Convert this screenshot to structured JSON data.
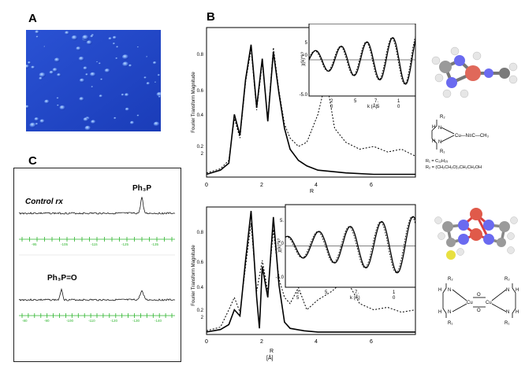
{
  "panels": {
    "a_label": "A",
    "b_label": "B",
    "c_label": "C"
  },
  "colors": {
    "afm_base": "#1f45c8",
    "afm_light": "#7fa6ff",
    "nmr_axis": "#2db52d",
    "spectrum": "#1a1a1a",
    "carbon": "#8a8a8a",
    "nitrogen": "#5a5af0",
    "copper": "#e05a4a",
    "sulfur": "#e8e040"
  },
  "panel_b": {
    "top": {
      "ylabel": "Fourier Transform Magnitude",
      "yticks": [
        "0.8",
        "0.6",
        "0.4",
        "0.2"
      ],
      "yticks_extra": "2",
      "xticks": [
        "0",
        "2",
        "4",
        "6"
      ],
      "xlabel": "R",
      "inset": {
        "ylabel": "χ(k)*k³",
        "yticks": [
          "5",
          "0",
          "-5.0"
        ],
        "xticks": [
          "2",
          "5",
          "7.",
          "1"
        ],
        "xticks2": [
          "0",
          "5",
          "0"
        ],
        "xlabel": "k (Å)"
      },
      "chemistry": {
        "sub_r2": "R₂",
        "label_nh": "N",
        "label_h": "H",
        "label_cu": "Cu—N≡C—CH₃",
        "sub_r1": "R₁",
        "r1_def": "R₁ = C₁₂H₂₅",
        "r2_def": "R₂ = (CH₂CH₂O)₃CH₂CH₂OH"
      }
    },
    "bottom": {
      "ylabel": "Fourier Transform Magnitude",
      "yticks": [
        "0.8",
        "0.6",
        "0.4",
        "0.2"
      ],
      "yticks_extra": "2",
      "xticks": [
        "0",
        "2",
        "4",
        "6"
      ],
      "xlabel": "R",
      "xlabel_unit": "[Å]",
      "inset": {
        "ylabel": "χ(k)*k³",
        "yticks": [
          "5.",
          "0",
          "-5.0"
        ],
        "xticks": [
          "2.",
          "5",
          "7.",
          "1"
        ],
        "xticks2": [
          "5",
          "",
          "0"
        ],
        "xlabel": "k (Å)"
      },
      "chemistry": {
        "r2_left": "R₂",
        "r2_right": "R₂",
        "r1_left": "R₁",
        "r1_right": "R₁",
        "h": "H",
        "n": "N",
        "cu": "Cu",
        "o": "O"
      }
    }
  },
  "panel_c": {
    "spectrum1": {
      "title": "Control rx",
      "peak_label": "Ph₃P",
      "ticks": [
        "-95",
        "-105",
        "-115",
        "-125",
        "-135"
      ]
    },
    "spectrum2": {
      "peak_label": "Ph₃P=O",
      "ticks": [
        "-80",
        "-90",
        "-100",
        "-110",
        "-120",
        "-130",
        "-140"
      ]
    }
  },
  "chart_data": [
    {
      "type": "line",
      "panel": "B-top",
      "xlabel": "R",
      "ylabel": "Fourier Transform Magnitude",
      "xlim": [
        0,
        7.5
      ],
      "ylim": [
        0,
        1.0
      ],
      "series": [
        {
          "x": [
            0,
            0.5,
            0.8,
            1.0,
            1.2,
            1.4,
            1.6,
            1.8,
            2.0,
            2.2,
            2.4,
            2.6,
            2.8,
            3.0,
            3.3,
            3.6,
            4.0,
            4.5,
            5.0,
            6.0,
            7.0,
            7.5
          ],
          "y": [
            0.02,
            0.05,
            0.1,
            0.45,
            0.3,
            0.7,
            0.95,
            0.5,
            0.85,
            0.4,
            0.9,
            0.6,
            0.35,
            0.2,
            0.12,
            0.08,
            0.05,
            0.04,
            0.03,
            0.02,
            0.02,
            0.02
          ]
        },
        {
          "x": [
            0,
            0.5,
            0.8,
            1.0,
            1.2,
            1.4,
            1.6,
            1.8,
            2.0,
            2.2,
            2.4,
            2.6,
            2.8,
            3.0,
            3.3,
            3.6,
            4.0,
            4.3,
            4.6,
            5.0,
            5.5,
            6.0,
            6.5,
            7.0,
            7.5
          ],
          "y": [
            0.03,
            0.06,
            0.12,
            0.42,
            0.28,
            0.68,
            0.92,
            0.48,
            0.82,
            0.42,
            0.93,
            0.62,
            0.38,
            0.28,
            0.22,
            0.25,
            0.45,
            0.7,
            0.35,
            0.25,
            0.2,
            0.22,
            0.18,
            0.2,
            0.15
          ]
        }
      ]
    },
    {
      "type": "line",
      "panel": "B-bottom",
      "xlabel": "R",
      "ylabel": "Fourier Transform Magnitude",
      "xlim": [
        0,
        7.5
      ],
      "ylim": [
        0,
        1.0
      ],
      "series": [
        {
          "x": [
            0,
            0.5,
            0.8,
            1.0,
            1.2,
            1.4,
            1.6,
            1.8,
            1.9,
            2.0,
            2.2,
            2.4,
            2.6,
            2.8,
            3.0,
            3.5,
            4.0,
            5.0,
            6.0,
            7.5
          ],
          "y": [
            0.02,
            0.04,
            0.08,
            0.2,
            0.15,
            0.6,
            1.0,
            0.3,
            0.05,
            0.55,
            0.3,
            0.95,
            0.4,
            0.1,
            0.05,
            0.03,
            0.02,
            0.02,
            0.02,
            0.02
          ]
        },
        {
          "x": [
            0,
            0.5,
            0.8,
            1.0,
            1.2,
            1.4,
            1.6,
            1.8,
            2.0,
            2.2,
            2.4,
            2.6,
            2.8,
            3.0,
            3.3,
            3.6,
            4.0,
            4.5,
            5.0,
            5.5,
            6.0,
            6.5,
            7.0,
            7.5
          ],
          "y": [
            0.03,
            0.06,
            0.2,
            0.3,
            0.18,
            0.55,
            0.9,
            0.35,
            0.6,
            0.35,
            0.85,
            0.45,
            0.3,
            0.25,
            0.38,
            0.2,
            0.28,
            0.35,
            0.45,
            0.25,
            0.2,
            0.22,
            0.18,
            0.2
          ]
        }
      ]
    }
  ]
}
